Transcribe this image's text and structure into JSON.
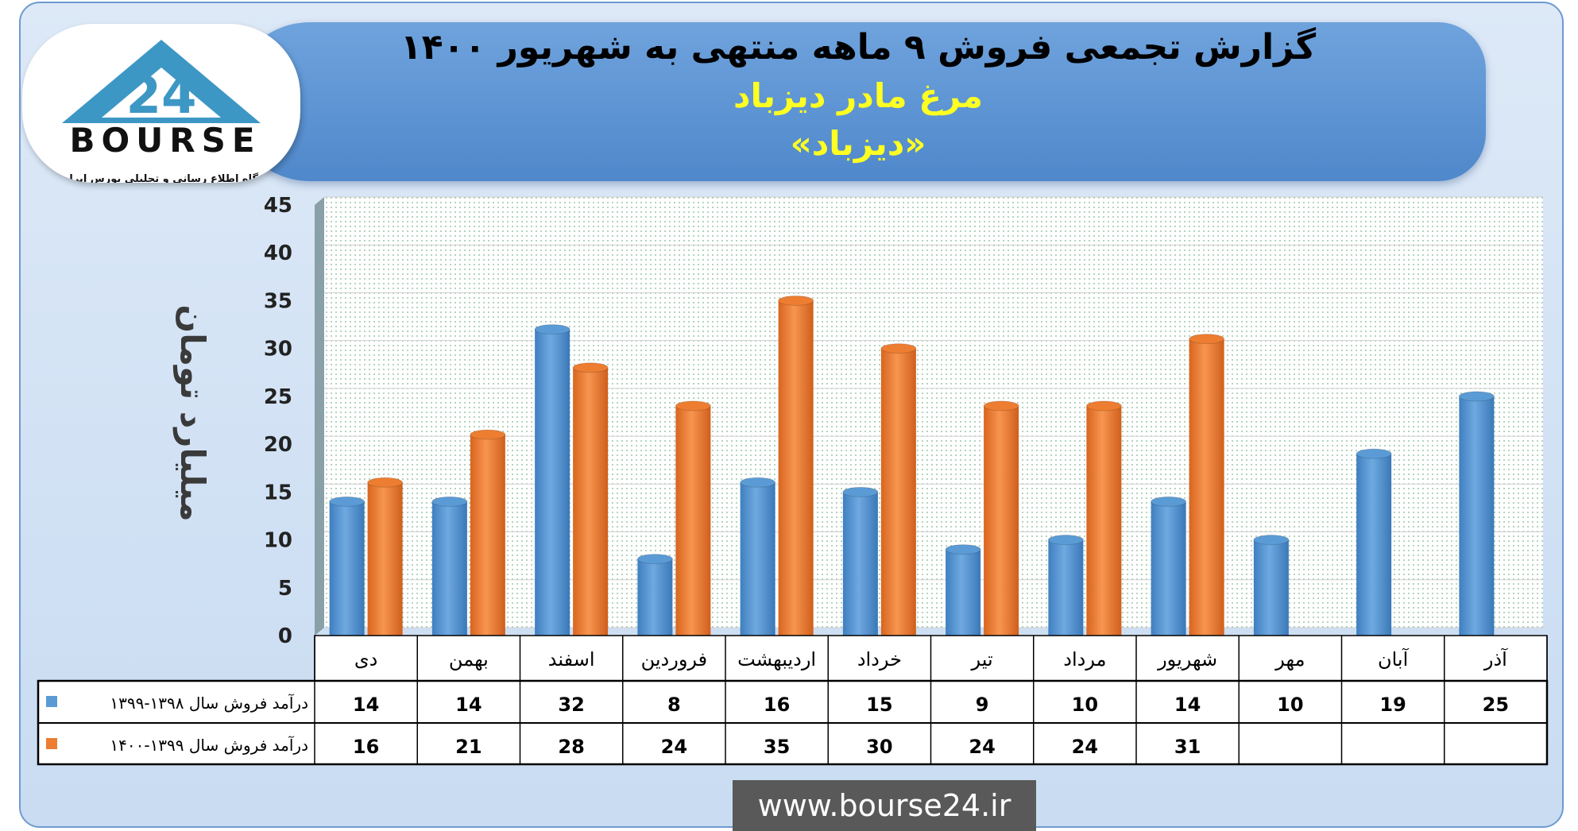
{
  "header": {
    "title": "گزارش تجمعی فروش ۹ ماهه منتهی به شهریور ۱۴۰۰",
    "subtitle": "مرغ مادر دیزباد",
    "symbol": "«دیزباد»"
  },
  "logo": {
    "name": "BOURSE",
    "tagline": "پایگاه اطلاع رسانی و تحلیلی بورس ایران"
  },
  "footer": {
    "url": "www.bourse24.ir"
  },
  "colors": {
    "series1": "#5b9bd5",
    "series2": "#ed7d31",
    "plot_bg": "#ffffff",
    "grid": "#d0d0d0"
  },
  "chart_data": {
    "type": "bar",
    "ylabel": "میلیارد تومان",
    "ylim": [
      0,
      45
    ],
    "yticks": [
      0,
      5,
      10,
      15,
      20,
      25,
      30,
      35,
      40,
      45
    ],
    "categories": [
      "دی",
      "بهمن",
      "اسفند",
      "فروردین",
      "اردیبهشت",
      "خرداد",
      "تیر",
      "مرداد",
      "شهریور",
      "مهر",
      "آبان",
      "آذر"
    ],
    "series": [
      {
        "name": "درآمد فروش سال ۱۳۹۸-۱۳۹۹",
        "values": [
          14,
          14,
          32,
          8,
          16,
          15,
          9,
          10,
          14,
          10,
          19,
          25
        ]
      },
      {
        "name": "درآمد فروش سال ۱۳۹۹-۱۴۰۰",
        "values": [
          16,
          21,
          28,
          24,
          35,
          30,
          24,
          24,
          31,
          null,
          null,
          null
        ]
      }
    ],
    "grid": true,
    "data_table": true
  }
}
